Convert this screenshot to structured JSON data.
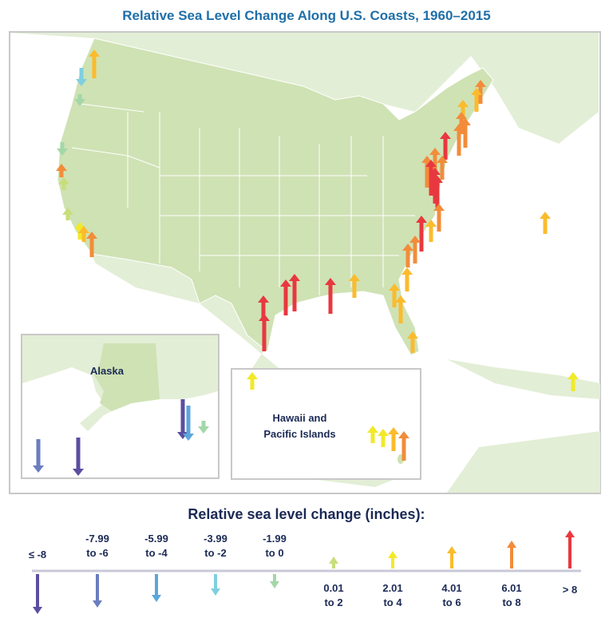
{
  "title": "Relative Sea Level Change Along U.S. Coasts, 1960–2015",
  "insets": {
    "alaska": "Alaska",
    "hawaii_line1": "Hawaii and",
    "hawaii_line2": "Pacific Islands"
  },
  "legend": {
    "title": "Relative sea level change (inches):",
    "categories": [
      {
        "l1": "≤ -8",
        "l2": "",
        "color": "#5b4ea0",
        "dir": "down"
      },
      {
        "l1": "-7.99",
        "l2": "to -6",
        "color": "#6a7dbf",
        "dir": "down"
      },
      {
        "l1": "-5.99",
        "l2": "to -4",
        "color": "#5ba6dc",
        "dir": "down"
      },
      {
        "l1": "-3.99",
        "l2": "to -2",
        "color": "#7fcfe0",
        "dir": "down"
      },
      {
        "l1": "-1.99",
        "l2": "to 0",
        "color": "#a4d7a8",
        "dir": "down"
      },
      {
        "l1": "0.01",
        "l2": "to 2",
        "color": "#c7de7a",
        "dir": "up"
      },
      {
        "l1": "2.01",
        "l2": "to 4",
        "color": "#f2e92a",
        "dir": "up"
      },
      {
        "l1": "4.01",
        "l2": "to 6",
        "color": "#fbbb2c",
        "dir": "up"
      },
      {
        "l1": "6.01",
        "l2": "to 8",
        "color": "#f28c3a",
        "dir": "up"
      },
      {
        "l1": "> 8",
        "l2": "",
        "color": "#e8383f",
        "dir": "up"
      }
    ]
  },
  "colors": {
    "land": "#cfe2b4",
    "land_light": "#e3eed6",
    "frame": "#c8c8c8",
    "title": "#1f6fa8"
  }
}
